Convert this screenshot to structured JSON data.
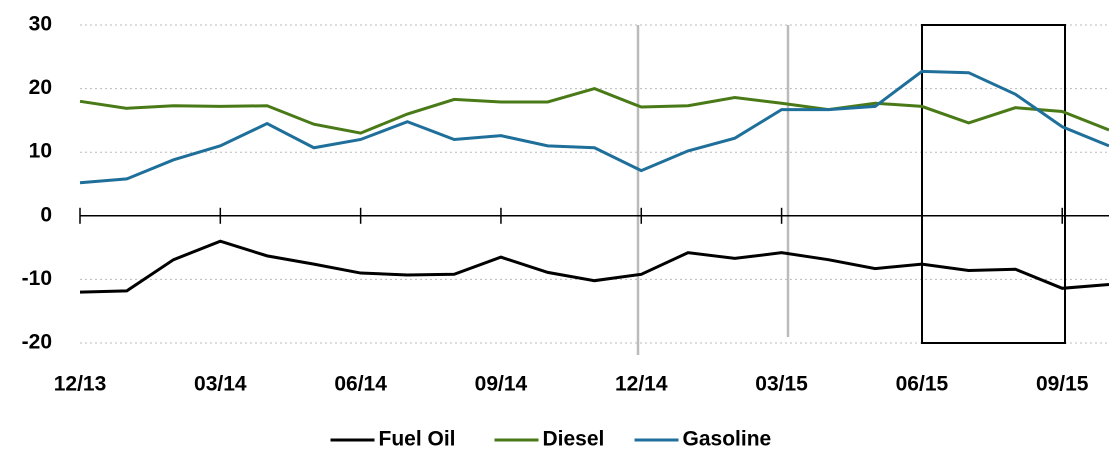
{
  "chart_data": {
    "type": "line",
    "categories": [
      "12/13",
      null,
      null,
      "03/14",
      null,
      null,
      "06/14",
      null,
      null,
      "09/14",
      null,
      null,
      "12/14",
      null,
      null,
      "03/15",
      null,
      null,
      "06/15",
      null,
      null,
      "09/15",
      null
    ],
    "series": [
      {
        "name": "Fuel Oil",
        "color": "#000000",
        "values": [
          -12,
          -11.8,
          -6.9,
          -4,
          -6.3,
          -7.6,
          -9,
          -9.3,
          -9.2,
          -6.5,
          -8.9,
          -10.2,
          -9.2,
          -5.8,
          -6.7,
          -5.8,
          -6.9,
          -8.3,
          -7.6,
          -8.6,
          -8.4,
          -11.4,
          -10.8
        ]
      },
      {
        "name": "Diesel",
        "color": "#4a7a17",
        "values": [
          18,
          16.9,
          17.3,
          17.2,
          17.3,
          14.4,
          13,
          16,
          18.3,
          17.9,
          17.9,
          20,
          17.1,
          17.3,
          18.6,
          17.7,
          16.7,
          17.7,
          17.2,
          14.6,
          17,
          16.4,
          13.5
        ]
      },
      {
        "name": "Gasoline",
        "color": "#1f6f9b",
        "values": [
          5.2,
          5.8,
          8.8,
          11,
          14.5,
          10.7,
          12,
          14.8,
          12,
          12.6,
          11,
          10.7,
          7.1,
          10.2,
          12.2,
          16.7,
          16.7,
          17.2,
          22.7,
          22.5,
          19.1,
          14,
          11
        ]
      }
    ],
    "ylim": [
      -20,
      30
    ],
    "yticks": [
      -20,
      -10,
      0,
      10,
      20,
      30
    ],
    "grid": true,
    "legend": "bottom"
  }
}
